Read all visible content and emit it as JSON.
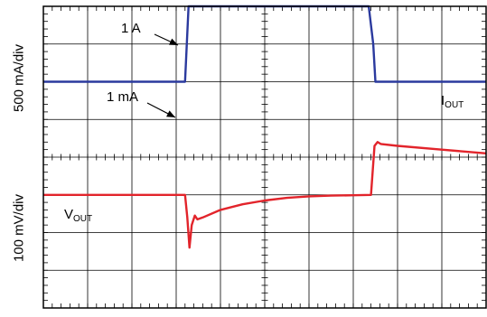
{
  "chart_data": {
    "type": "line",
    "title": "",
    "grid": true,
    "axes": {
      "upper_ylabel": "500 mA/div",
      "lower_ylabel": "100 mV/div",
      "divisions_x": 10,
      "divisions_y": 8
    },
    "annotations": {
      "high_current": "1 A",
      "low_current": "1 mA",
      "iout_main": "I",
      "iout_sub": "OUT",
      "vout_main": "V",
      "vout_sub": "OUT"
    },
    "series": [
      {
        "name": "I",
        "color": "#2b3a9e",
        "x_div": [
          0,
          3.2,
          3.2,
          3.28,
          7.35,
          7.45,
          7.5,
          10
        ],
        "y_div": [
          2.0,
          2.0,
          2.0,
          4.0,
          4.0,
          3.0,
          2.0,
          2.0
        ]
      },
      {
        "name": "V",
        "color": "#e2242b",
        "x_div": [
          0,
          3.2,
          3.25,
          3.3,
          3.35,
          3.42,
          3.48,
          3.6,
          4.0,
          4.5,
          5.0,
          5.5,
          6.0,
          6.5,
          7.0,
          7.4,
          7.48,
          7.55,
          7.62,
          8.0,
          9.0,
          10
        ],
        "y_div": [
          -1.0,
          -1.0,
          -1.6,
          -2.4,
          -1.8,
          -1.55,
          -1.65,
          -1.6,
          -1.4,
          -1.25,
          -1.15,
          -1.08,
          -1.04,
          -1.02,
          -1.01,
          -1.0,
          0.3,
          0.4,
          0.35,
          0.3,
          0.2,
          0.1
        ]
      }
    ]
  }
}
